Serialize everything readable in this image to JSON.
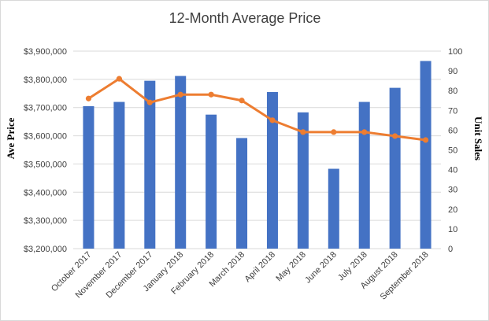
{
  "chart_data": {
    "type": "bar+line",
    "title": "12-Month Average Price",
    "categories": [
      "October 2017",
      "November 2017",
      "December 2017",
      "January 2018",
      "February 2018",
      "March 2018",
      "April 2018",
      "May 2018",
      "June 2018",
      "July 2018",
      "August 2018",
      "September 2018"
    ],
    "series": [
      {
        "type": "bar",
        "axis": "left",
        "color": "#4472c4",
        "values": [
          3705000,
          3720000,
          3795000,
          3812000,
          3675000,
          3592000,
          3755000,
          3683000,
          3483000,
          3720000,
          3770000,
          3865000
        ]
      },
      {
        "type": "line",
        "axis": "right",
        "color": "#ed7d31",
        "values": [
          76,
          86,
          74,
          78,
          78,
          75,
          65,
          59,
          59,
          59,
          57,
          55
        ]
      }
    ],
    "ylabel": "Ave Price",
    "y2label": "Unit Sales",
    "ylim": [
      3200000,
      3900000
    ],
    "y2lim": [
      0,
      100
    ],
    "yticks": [
      "$3,200,000",
      "$3,300,000",
      "$3,400,000",
      "$3,500,000",
      "$3,600,000",
      "$3,700,000",
      "$3,800,000",
      "$3,900,000"
    ],
    "y2ticks": [
      "0",
      "10",
      "20",
      "30",
      "40",
      "50",
      "60",
      "70",
      "80",
      "90",
      "100"
    ],
    "grid": true,
    "legend": "none"
  }
}
